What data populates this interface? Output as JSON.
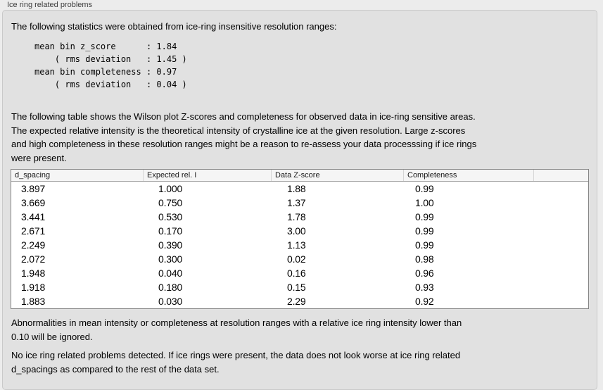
{
  "panel": {
    "title": "Ice ring related problems",
    "intro": "The following statistics were obtained from ice-ring insensitive resolution ranges:",
    "stats_block": "mean bin z_score      : 1.84\n    ( rms deviation   : 1.45 )\nmean bin completeness : 0.97\n    ( rms deviation   : 0.04 )",
    "description": "The following table shows the Wilson plot Z-scores and completeness for observed data in ice-ring sensitive areas.\nThe expected relative intensity is the theoretical intensity of crystalline ice at the given resolution. Large z-scores\nand high completeness in these resolution ranges might be a reason to re-assess your data processsing if ice rings\nwere present.",
    "note_ignore": "Abnormalities in mean intensity or completeness at resolution ranges with a relative ice ring intensity lower than\n0.10 will be ignored.",
    "conclusion": "No ice ring related problems detected. If ice rings were present, the data does not look worse at ice ring related\nd_spacings as compared to the rest of the data set."
  },
  "table": {
    "headers": [
      "d_spacing",
      "Expected rel. I",
      "Data Z-score",
      "Completeness",
      ""
    ],
    "rows": [
      [
        "3.897",
        "1.000",
        "1.88",
        "0.99"
      ],
      [
        "3.669",
        "0.750",
        "1.37",
        "1.00"
      ],
      [
        "3.441",
        "0.530",
        "1.78",
        "0.99"
      ],
      [
        "2.671",
        "0.170",
        "3.00",
        "0.99"
      ],
      [
        "2.249",
        "0.390",
        "1.13",
        "0.99"
      ],
      [
        "2.072",
        "0.300",
        "0.02",
        "0.98"
      ],
      [
        "1.948",
        "0.040",
        "0.16",
        "0.96"
      ],
      [
        "1.918",
        "0.180",
        "0.15",
        "0.93"
      ],
      [
        "1.883",
        "0.030",
        "2.29",
        "0.92"
      ]
    ]
  },
  "colors": {
    "page_bg": "#ececec",
    "panel_bg": "#e1e1e1",
    "panel_border": "#c9c9c9",
    "table_border": "#848484",
    "table_header_bg": "#f5f5f5",
    "text": "#000000"
  }
}
